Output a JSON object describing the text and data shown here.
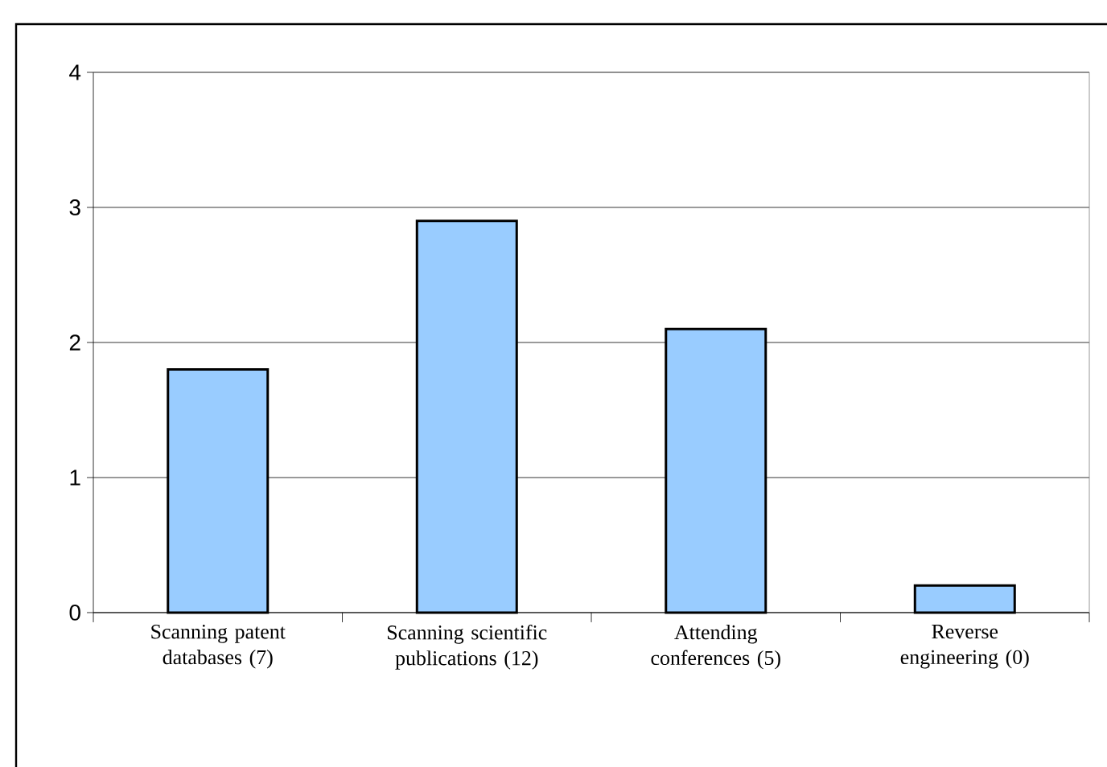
{
  "chart_data": {
    "type": "bar",
    "categories": [
      "Scanning patent databases (7)",
      "Scanning scientific publications (12)",
      "Attending conferences (5)",
      "Reverse engineering (0)"
    ],
    "values": [
      1.8,
      2.9,
      2.1,
      0.2
    ],
    "color": "#99ccff",
    "ylim": [
      0,
      4
    ],
    "yticks": [
      0,
      1,
      2,
      3,
      4
    ],
    "grid": "y"
  }
}
